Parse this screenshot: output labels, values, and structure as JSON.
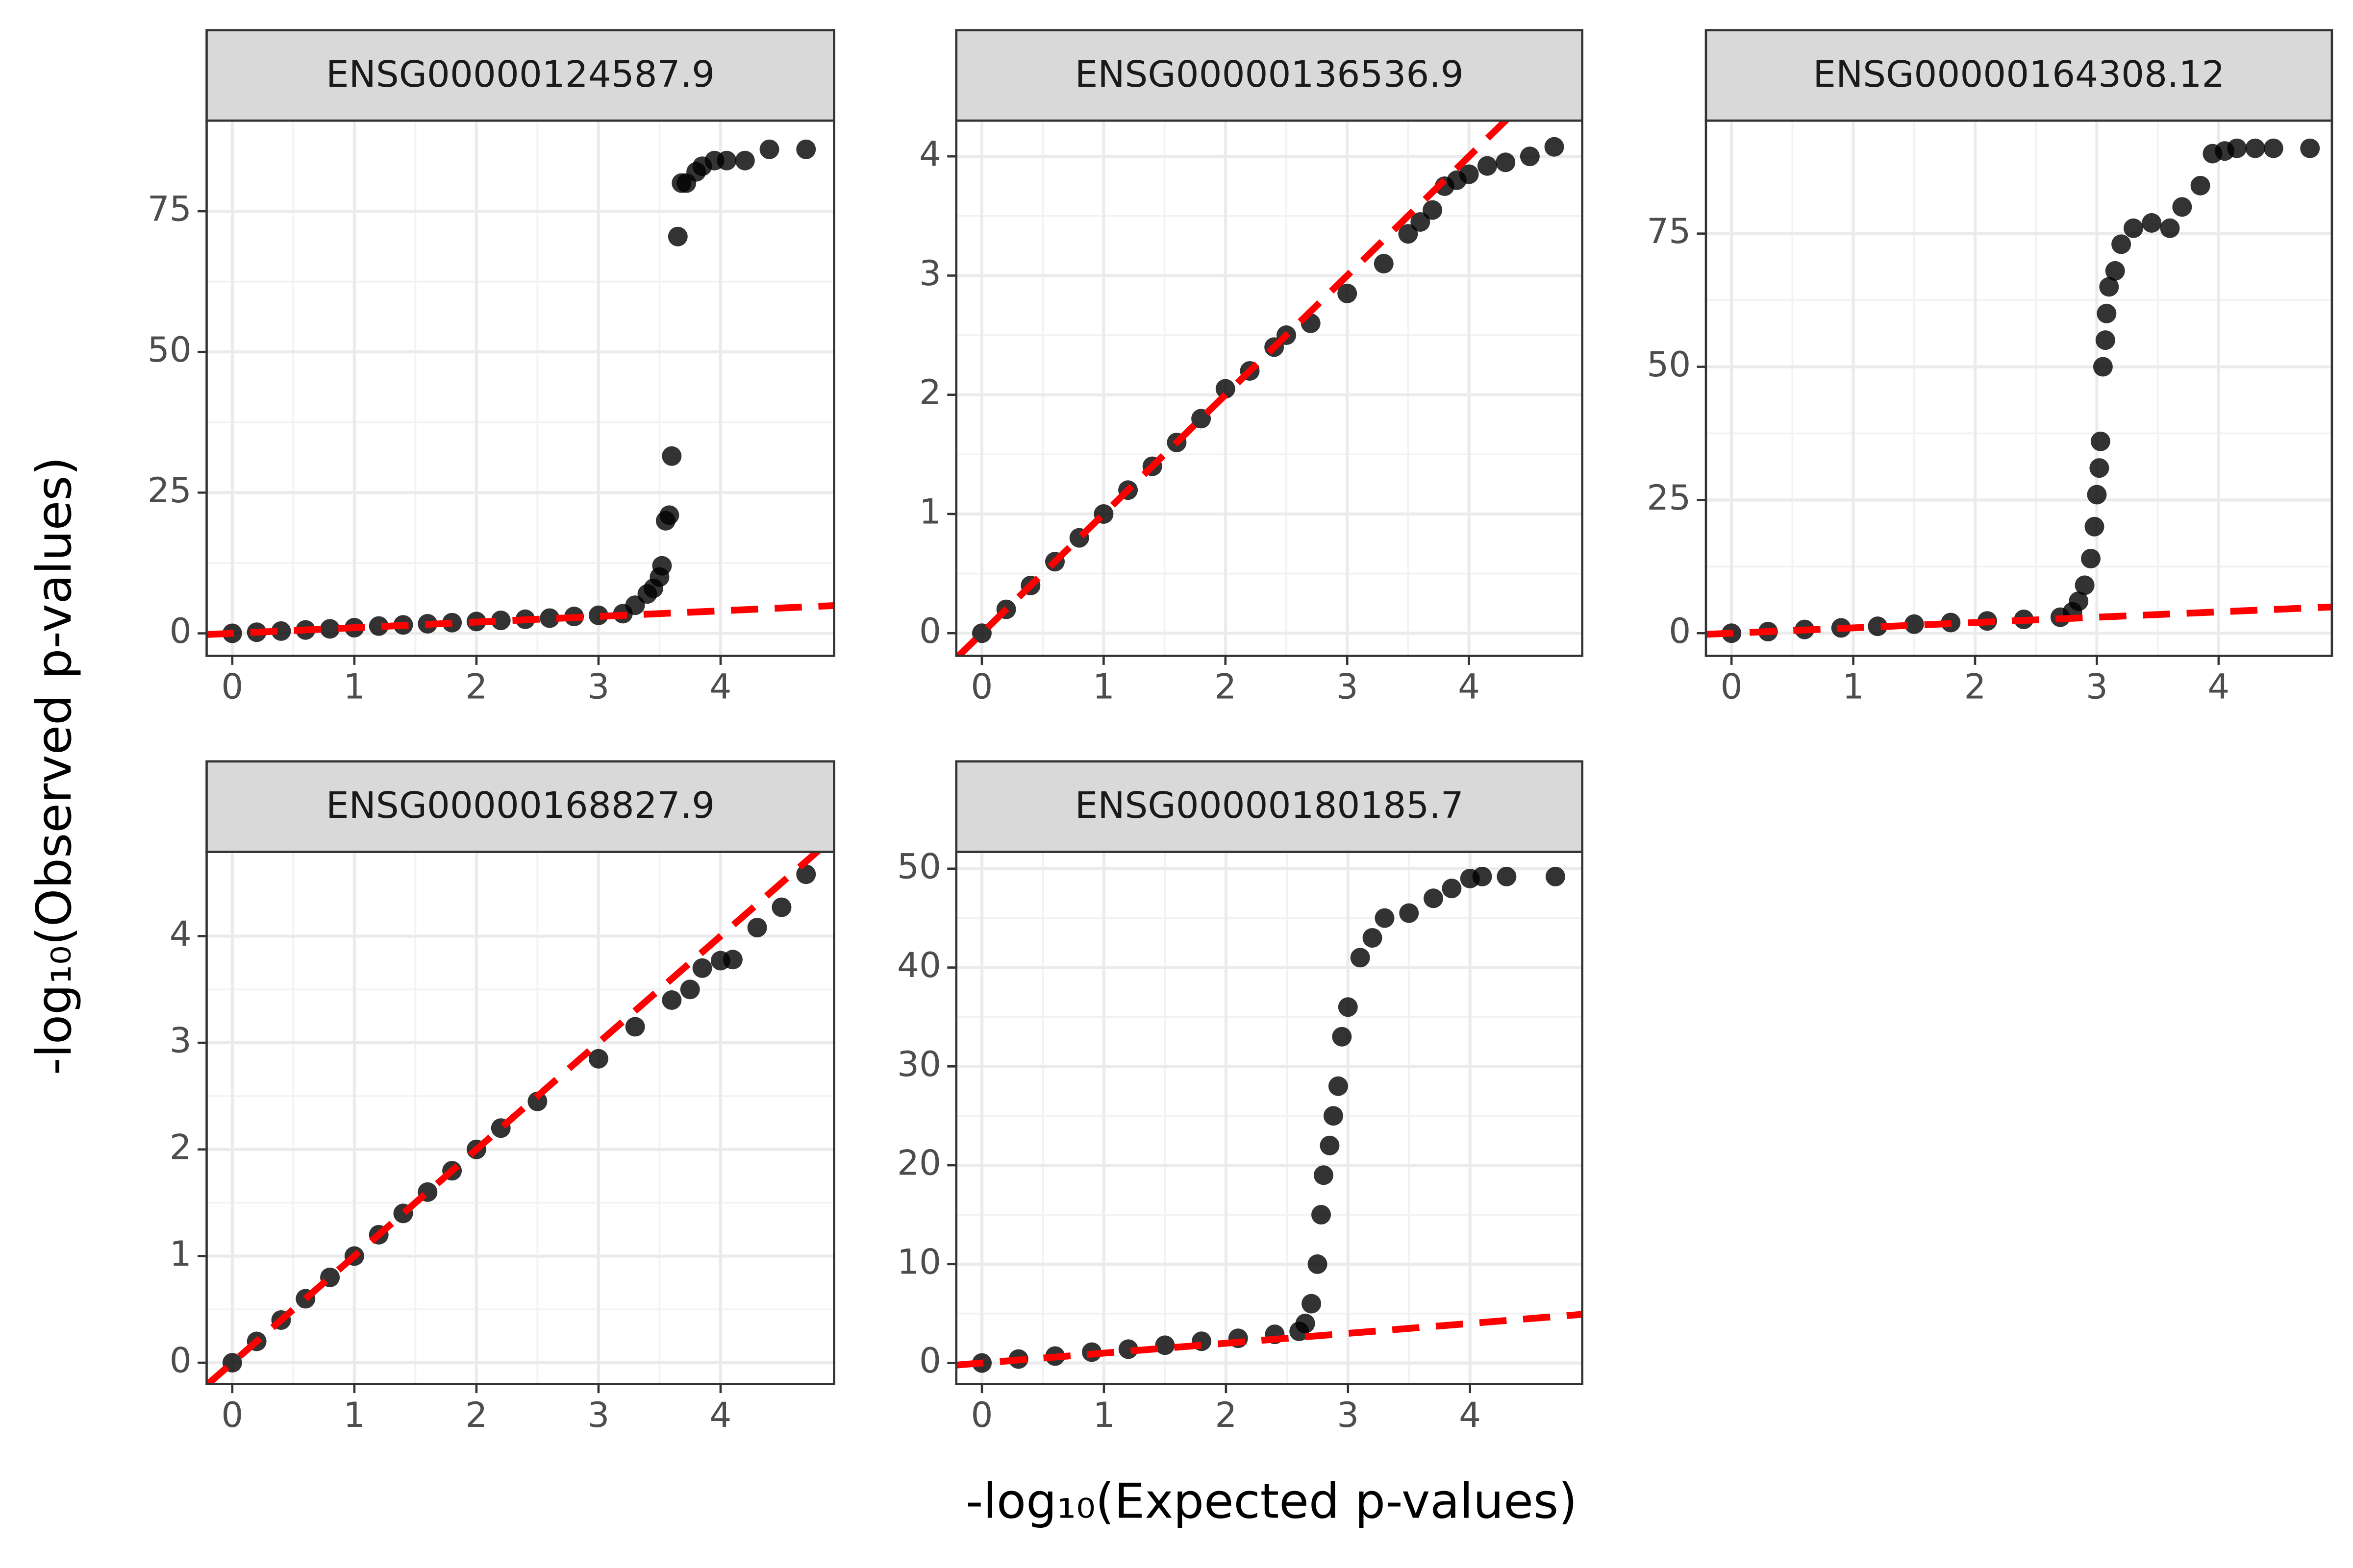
{
  "chart_data": [
    {
      "type": "scatter",
      "title": "ENSG00000124587.9",
      "color": "#000000",
      "reference_line_color": "#ff0000",
      "grid": true,
      "xlim": [
        -0.21,
        4.93
      ],
      "xticks": [
        0,
        1,
        2,
        3,
        4
      ],
      "ylim": [
        -4.0,
        91.1
      ],
      "yticks": [
        0,
        25,
        50,
        75
      ],
      "x": [
        0,
        0.2,
        0.4,
        0.6,
        0.8,
        1.0,
        1.2,
        1.4,
        1.6,
        1.8,
        2.0,
        2.2,
        2.4,
        2.6,
        2.8,
        3.0,
        3.2,
        3.3,
        3.4,
        3.45,
        3.5,
        3.52,
        3.55,
        3.58,
        3.6,
        3.65,
        3.68,
        3.72,
        3.8,
        3.85,
        3.95,
        4.05,
        4.2,
        4.4,
        4.7
      ],
      "values": [
        0,
        0.2,
        0.4,
        0.6,
        0.8,
        1.0,
        1.3,
        1.5,
        1.7,
        1.9,
        2.1,
        2.3,
        2.5,
        2.7,
        3.0,
        3.2,
        3.5,
        5,
        7,
        8,
        10,
        12,
        20,
        21,
        31.5,
        70.5,
        80,
        80,
        82,
        83,
        84,
        84,
        84,
        86,
        86
      ]
    },
    {
      "type": "scatter",
      "title": "ENSG00000136536.9",
      "color": "#000000",
      "reference_line_color": "#ff0000",
      "grid": true,
      "xlim": [
        -0.21,
        4.93
      ],
      "xticks": [
        0,
        1,
        2,
        3,
        4
      ],
      "ylim": [
        -0.19,
        4.3
      ],
      "yticks": [
        0,
        1,
        2,
        3,
        4
      ],
      "x": [
        0,
        0.2,
        0.4,
        0.6,
        0.8,
        1.0,
        1.2,
        1.4,
        1.6,
        1.8,
        2.0,
        2.2,
        2.4,
        2.5,
        2.7,
        3.0,
        3.3,
        3.5,
        3.6,
        3.7,
        3.8,
        3.9,
        4.0,
        4.15,
        4.3,
        4.5,
        4.7
      ],
      "values": [
        0,
        0.2,
        0.4,
        0.6,
        0.8,
        1.0,
        1.2,
        1.4,
        1.6,
        1.8,
        2.05,
        2.2,
        2.4,
        2.5,
        2.6,
        2.85,
        3.1,
        3.35,
        3.45,
        3.55,
        3.75,
        3.8,
        3.85,
        3.92,
        3.95,
        4.0,
        4.08
      ]
    },
    {
      "type": "scatter",
      "title": "ENSG00000164308.12",
      "color": "#000000",
      "reference_line_color": "#ff0000",
      "grid": true,
      "xlim": [
        -0.21,
        4.93
      ],
      "xticks": [
        0,
        1,
        2,
        3,
        4
      ],
      "ylim": [
        -4.25,
        96.2
      ],
      "yticks": [
        0,
        25,
        50,
        75
      ],
      "x": [
        0,
        0.3,
        0.6,
        0.9,
        1.2,
        1.5,
        1.8,
        2.1,
        2.4,
        2.7,
        2.8,
        2.85,
        2.9,
        2.95,
        2.98,
        3.0,
        3.02,
        3.03,
        3.05,
        3.07,
        3.08,
        3.1,
        3.15,
        3.2,
        3.3,
        3.45,
        3.6,
        3.7,
        3.85,
        3.95,
        4.05,
        4.15,
        4.3,
        4.45,
        4.75
      ],
      "values": [
        0,
        0.3,
        0.7,
        1.0,
        1.3,
        1.7,
        2.0,
        2.3,
        2.6,
        3.0,
        4,
        6,
        9,
        14,
        20,
        26,
        31,
        36,
        50,
        55,
        60,
        65,
        68,
        73,
        76,
        77,
        76,
        80,
        84,
        90,
        90.5,
        91,
        91,
        91,
        91
      ]
    },
    {
      "type": "scatter",
      "title": "ENSG00000168827.9",
      "color": "#000000",
      "reference_line_color": "#ff0000",
      "grid": true,
      "xlim": [
        -0.21,
        4.93
      ],
      "xticks": [
        0,
        1,
        2,
        3,
        4
      ],
      "ylim": [
        -0.2,
        4.79
      ],
      "yticks": [
        0,
        1,
        2,
        3,
        4
      ],
      "x": [
        0,
        0.2,
        0.4,
        0.6,
        0.8,
        1.0,
        1.2,
        1.4,
        1.6,
        1.8,
        2.0,
        2.2,
        2.5,
        3.0,
        3.3,
        3.6,
        3.75,
        3.85,
        4.0,
        4.1,
        4.3,
        4.5,
        4.7
      ],
      "values": [
        0,
        0.2,
        0.4,
        0.6,
        0.8,
        1.0,
        1.2,
        1.4,
        1.6,
        1.8,
        2.0,
        2.2,
        2.45,
        2.85,
        3.15,
        3.4,
        3.5,
        3.7,
        3.77,
        3.78,
        4.08,
        4.27,
        4.58
      ]
    },
    {
      "type": "scatter",
      "title": "ENSG00000180185.7",
      "color": "#000000",
      "reference_line_color": "#ff0000",
      "grid": true,
      "xlim": [
        -0.21,
        4.92
      ],
      "xticks": [
        0,
        1,
        2,
        3,
        4
      ],
      "ylim": [
        -2.13,
        51.7
      ],
      "yticks": [
        0,
        10,
        20,
        30,
        40,
        50
      ],
      "x": [
        0,
        0.3,
        0.6,
        0.9,
        1.2,
        1.5,
        1.8,
        2.1,
        2.4,
        2.6,
        2.65,
        2.7,
        2.75,
        2.78,
        2.8,
        2.85,
        2.88,
        2.92,
        2.95,
        3.0,
        3.1,
        3.2,
        3.3,
        3.5,
        3.7,
        3.85,
        4.0,
        4.1,
        4.3,
        4.7
      ],
      "values": [
        0,
        0.4,
        0.7,
        1.1,
        1.4,
        1.8,
        2.2,
        2.5,
        2.9,
        3.2,
        4,
        6,
        10,
        15,
        19,
        22,
        25,
        28,
        33,
        36,
        41,
        43,
        45,
        45.5,
        47,
        48,
        49,
        49.2,
        49.2,
        49.2
      ]
    }
  ],
  "x_label": "-log₁₀(Expected p-values)",
  "y_label": "-log₁₀(Observed p-values)"
}
